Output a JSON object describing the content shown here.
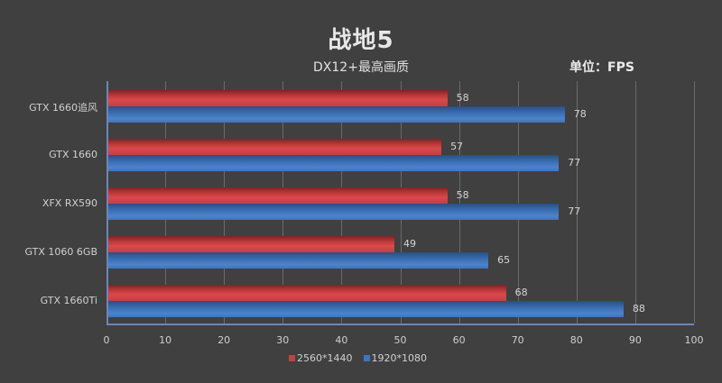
{
  "header": {
    "title": "战地5",
    "subtitle": "DX12+最高画质",
    "unit": "单位：FPS"
  },
  "colors": {
    "background": "#404040",
    "series_2560": "#c93e3f",
    "series_1920": "#3f74bd",
    "axis": "#6d86b8",
    "grid": "#6a6a6a"
  },
  "chart_data": {
    "type": "bar",
    "orientation": "horizontal",
    "title": "战地5",
    "subtitle": "DX12+最高画质",
    "unit_label": "单位：FPS",
    "categories": [
      "GTX 1660追风",
      "GTX 1660",
      "XFX RX590",
      "GTX 1060 6GB",
      "GTX 1660Ti"
    ],
    "series": [
      {
        "name": "2560*1440",
        "color": "#c93e3f",
        "values": [
          58,
          57,
          58,
          49,
          68
        ]
      },
      {
        "name": "1920*1080",
        "color": "#3f74bd",
        "values": [
          78,
          77,
          77,
          65,
          88
        ]
      }
    ],
    "xlabel": "",
    "ylabel": "",
    "xlim": [
      0,
      100
    ],
    "xticks": [
      0,
      10,
      20,
      30,
      40,
      50,
      60,
      70,
      80,
      90,
      100
    ],
    "grid": true,
    "legend_position": "bottom",
    "data_labels": true
  },
  "legend": [
    {
      "label": "2560*1440"
    },
    {
      "label": "1920*1080"
    }
  ]
}
